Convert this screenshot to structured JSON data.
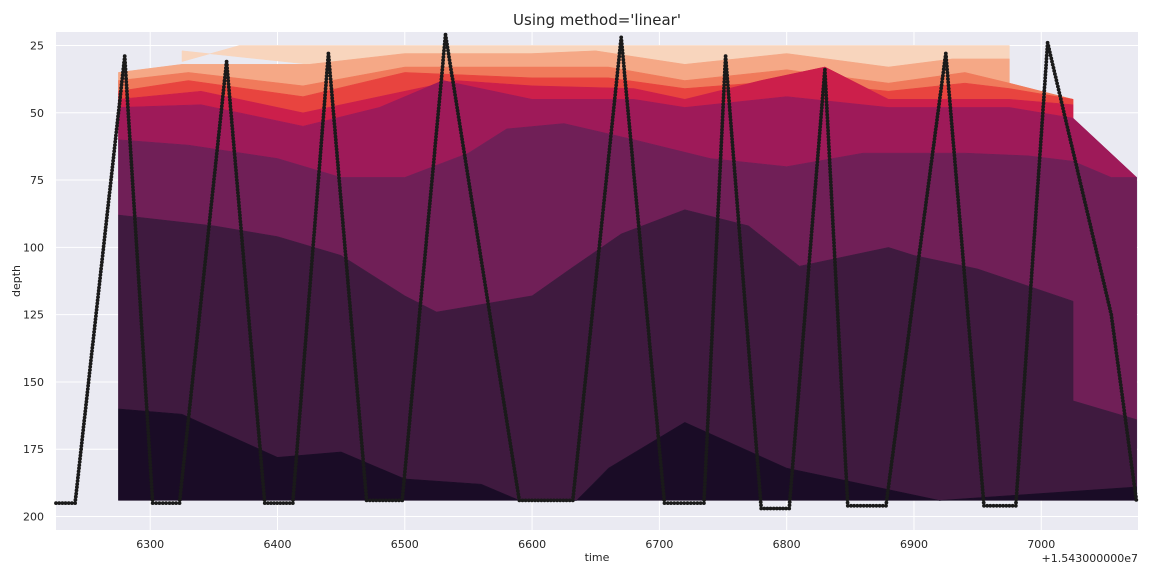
{
  "chart_data": {
    "type": "area",
    "title": "Using method='linear'",
    "xlabel": "time",
    "ylabel": "depth",
    "x_offset_label": "+1.543000000e7",
    "xlim": [
      6226,
      7076
    ],
    "ylim": [
      205,
      20
    ],
    "y_inverted": true,
    "grid": true,
    "xticks": [
      6300,
      6400,
      6500,
      6600,
      6700,
      6800,
      6900,
      7000
    ],
    "yticks": [
      25,
      50,
      75,
      100,
      125,
      150,
      175,
      200
    ],
    "xtick_labels": [
      "6300",
      "6400",
      "6500",
      "6600",
      "6700",
      "6800",
      "6900",
      "7000"
    ],
    "ytick_labels": [
      "25",
      "50",
      "75",
      "100",
      "125",
      "150",
      "175",
      "200"
    ],
    "colors": {
      "background": "#eaeaf2",
      "grid": "#ffffff",
      "profile": "#1a1a1a",
      "bands": [
        "#f8d5bd",
        "#f5a886",
        "#f07a5b",
        "#e8443f",
        "#cc1f4b",
        "#9e1a59",
        "#701f57",
        "#3f1a3f",
        "#1a0c26"
      ]
    },
    "bands": [
      {
        "upper": [
          [
            6325,
            31
          ],
          [
            6370,
            25
          ],
          [
            6975,
            25
          ]
        ],
        "lower": [
          [
            6325,
            27
          ],
          [
            6425,
            32
          ],
          [
            6500,
            28
          ],
          [
            6600,
            28
          ],
          [
            6650,
            27
          ],
          [
            6720,
            32
          ],
          [
            6800,
            28
          ],
          [
            6880,
            33
          ],
          [
            6930,
            30
          ],
          [
            6975,
            30
          ]
        ]
      },
      {
        "upper": [
          [
            6275,
            35
          ],
          [
            6325,
            32
          ],
          [
            6425,
            32
          ],
          [
            6500,
            28
          ],
          [
            6600,
            28
          ],
          [
            6650,
            27
          ],
          [
            6720,
            32
          ],
          [
            6800,
            28
          ],
          [
            6880,
            33
          ],
          [
            6930,
            30
          ],
          [
            6975,
            30
          ],
          [
            6975,
            38
          ]
        ],
        "lower": [
          [
            6275,
            38
          ],
          [
            6330,
            35
          ],
          [
            6420,
            40
          ],
          [
            6500,
            33
          ],
          [
            6610,
            33
          ],
          [
            6660,
            33
          ],
          [
            6720,
            38
          ],
          [
            6800,
            34
          ],
          [
            6880,
            39
          ],
          [
            6940,
            35
          ],
          [
            6975,
            39
          ]
        ]
      },
      {
        "upper": [
          [
            6275,
            38
          ],
          [
            6330,
            35
          ],
          [
            6420,
            40
          ],
          [
            6500,
            33
          ],
          [
            6610,
            33
          ],
          [
            6660,
            33
          ],
          [
            6720,
            38
          ],
          [
            6800,
            34
          ],
          [
            6880,
            39
          ],
          [
            6940,
            35
          ],
          [
            6975,
            39
          ]
        ],
        "lower": [
          [
            6275,
            42
          ],
          [
            6330,
            38
          ],
          [
            6420,
            44
          ],
          [
            6500,
            35
          ],
          [
            6600,
            37
          ],
          [
            6660,
            37
          ],
          [
            6720,
            41
          ],
          [
            6800,
            38
          ],
          [
            6880,
            42
          ],
          [
            6940,
            39
          ],
          [
            6975,
            41
          ],
          [
            7025,
            45
          ]
        ]
      },
      {
        "upper": [
          [
            6275,
            42
          ],
          [
            6330,
            38
          ],
          [
            6420,
            44
          ],
          [
            6500,
            35
          ],
          [
            6600,
            37
          ],
          [
            6660,
            37
          ],
          [
            6720,
            41
          ],
          [
            6800,
            38
          ],
          [
            6880,
            42
          ],
          [
            6940,
            39
          ],
          [
            6975,
            41
          ],
          [
            7025,
            45
          ]
        ],
        "lower": [
          [
            6275,
            45
          ],
          [
            6340,
            42
          ],
          [
            6420,
            50
          ],
          [
            6480,
            44
          ],
          [
            6540,
            38
          ],
          [
            6600,
            40
          ],
          [
            6680,
            41
          ],
          [
            6720,
            45
          ],
          [
            6780,
            38
          ],
          [
            6830,
            33
          ],
          [
            6880,
            45
          ],
          [
            6940,
            45
          ],
          [
            6975,
            45
          ],
          [
            7025,
            47
          ]
        ]
      },
      {
        "upper": [
          [
            6275,
            45
          ],
          [
            6340,
            42
          ],
          [
            6420,
            50
          ],
          [
            6480,
            44
          ],
          [
            6540,
            38
          ],
          [
            6600,
            40
          ],
          [
            6680,
            41
          ],
          [
            6720,
            45
          ],
          [
            6780,
            38
          ],
          [
            6830,
            33
          ],
          [
            6880,
            45
          ],
          [
            6940,
            45
          ],
          [
            6975,
            45
          ],
          [
            7025,
            47
          ]
        ],
        "lower": [
          [
            6275,
            48
          ],
          [
            6340,
            47
          ],
          [
            6420,
            55
          ],
          [
            6480,
            48
          ],
          [
            6530,
            38
          ],
          [
            6600,
            45
          ],
          [
            6680,
            45
          ],
          [
            6720,
            48
          ],
          [
            6800,
            44
          ],
          [
            6880,
            48
          ],
          [
            6940,
            48
          ],
          [
            6975,
            48
          ],
          [
            7025,
            52
          ]
        ]
      },
      {
        "upper": [
          [
            6275,
            48
          ],
          [
            6340,
            47
          ],
          [
            6420,
            55
          ],
          [
            6480,
            48
          ],
          [
            6530,
            38
          ],
          [
            6600,
            45
          ],
          [
            6680,
            45
          ],
          [
            6720,
            48
          ],
          [
            6800,
            44
          ],
          [
            6880,
            48
          ],
          [
            6940,
            48
          ],
          [
            6975,
            48
          ],
          [
            7025,
            52
          ]
        ],
        "lower": [
          [
            6275,
            60
          ],
          [
            6330,
            62
          ],
          [
            6400,
            67
          ],
          [
            6450,
            74
          ],
          [
            6500,
            74
          ],
          [
            6550,
            65
          ],
          [
            6580,
            56
          ],
          [
            6625,
            54
          ],
          [
            6680,
            60
          ],
          [
            6740,
            67
          ],
          [
            6800,
            70
          ],
          [
            6860,
            65
          ],
          [
            6940,
            65
          ],
          [
            6990,
            66
          ],
          [
            7025,
            68
          ],
          [
            7055,
            74
          ],
          [
            7075,
            74
          ]
        ]
      },
      {
        "upper": [
          [
            6275,
            60
          ],
          [
            6330,
            62
          ],
          [
            6400,
            67
          ],
          [
            6450,
            74
          ],
          [
            6500,
            74
          ],
          [
            6550,
            65
          ],
          [
            6580,
            56
          ],
          [
            6625,
            54
          ],
          [
            6680,
            60
          ],
          [
            6740,
            67
          ],
          [
            6800,
            70
          ],
          [
            6860,
            65
          ],
          [
            6940,
            65
          ],
          [
            6990,
            66
          ],
          [
            7025,
            68
          ],
          [
            7055,
            74
          ],
          [
            7075,
            74
          ]
        ],
        "lower": [
          [
            6275,
            88
          ],
          [
            6350,
            92
          ],
          [
            6400,
            96
          ],
          [
            6450,
            103
          ],
          [
            6500,
            118
          ],
          [
            6525,
            124
          ],
          [
            6600,
            118
          ],
          [
            6630,
            108
          ],
          [
            6670,
            95
          ],
          [
            6720,
            86
          ],
          [
            6770,
            92
          ],
          [
            6810,
            107
          ],
          [
            6880,
            100
          ],
          [
            6900,
            103
          ],
          [
            6950,
            108
          ],
          [
            7025,
            120
          ],
          [
            7025,
            157
          ],
          [
            7075,
            164
          ]
        ]
      },
      {
        "upper": [
          [
            6275,
            88
          ],
          [
            6350,
            92
          ],
          [
            6400,
            96
          ],
          [
            6450,
            103
          ],
          [
            6500,
            118
          ],
          [
            6525,
            124
          ],
          [
            6600,
            118
          ],
          [
            6630,
            108
          ],
          [
            6670,
            95
          ],
          [
            6720,
            86
          ],
          [
            6770,
            92
          ],
          [
            6810,
            107
          ],
          [
            6880,
            100
          ],
          [
            6900,
            103
          ],
          [
            6950,
            108
          ],
          [
            7025,
            120
          ],
          [
            7025,
            157
          ],
          [
            7075,
            164
          ]
        ],
        "lower": [
          [
            6275,
            160
          ],
          [
            6325,
            162
          ],
          [
            6400,
            178
          ],
          [
            6450,
            176
          ],
          [
            6500,
            186
          ],
          [
            6560,
            188
          ],
          [
            6590,
            194
          ],
          [
            6635,
            194
          ],
          [
            6660,
            182
          ],
          [
            6720,
            165
          ],
          [
            6800,
            182
          ],
          [
            6870,
            189
          ],
          [
            6920,
            194
          ],
          [
            7075,
            189
          ]
        ]
      },
      {
        "upper": [
          [
            6275,
            160
          ],
          [
            6325,
            162
          ],
          [
            6400,
            178
          ],
          [
            6450,
            176
          ],
          [
            6500,
            186
          ],
          [
            6560,
            188
          ],
          [
            6590,
            194
          ],
          [
            6635,
            194
          ],
          [
            6660,
            182
          ],
          [
            6720,
            165
          ],
          [
            6800,
            182
          ],
          [
            6870,
            189
          ],
          [
            6920,
            194
          ],
          [
            7075,
            189
          ]
        ],
        "lower": [
          [
            6275,
            194
          ],
          [
            7075,
            194
          ]
        ]
      }
    ],
    "profile_vertices": [
      [
        6226,
        195
      ],
      [
        6241,
        195
      ],
      [
        6280,
        29
      ],
      [
        6302,
        195
      ],
      [
        6323,
        195
      ],
      [
        6360,
        31
      ],
      [
        6390,
        195
      ],
      [
        6412,
        195
      ],
      [
        6440,
        28
      ],
      [
        6470,
        194
      ],
      [
        6498,
        194
      ],
      [
        6532,
        21
      ],
      [
        6590,
        194
      ],
      [
        6632,
        194
      ],
      [
        6670,
        22
      ],
      [
        6704,
        195
      ],
      [
        6735,
        195
      ],
      [
        6752,
        29
      ],
      [
        6780,
        197
      ],
      [
        6802,
        197
      ],
      [
        6830,
        34
      ],
      [
        6848,
        196
      ],
      [
        6878,
        196
      ],
      [
        6925,
        28
      ],
      [
        6955,
        196
      ],
      [
        6980,
        196
      ],
      [
        7005,
        24
      ],
      [
        7055,
        125
      ],
      [
        7075,
        195
      ]
    ],
    "profile_point_spacing": 3.2
  }
}
